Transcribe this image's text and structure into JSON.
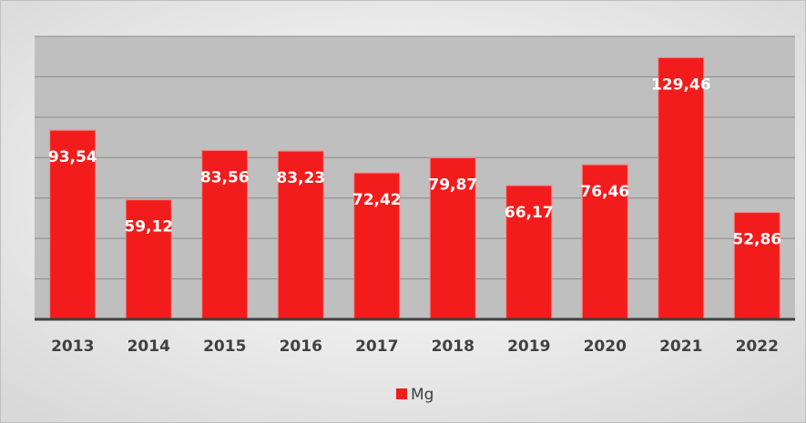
{
  "chart_data": {
    "type": "bar",
    "categories": [
      "2013",
      "2014",
      "2015",
      "2016",
      "2017",
      "2018",
      "2019",
      "2020",
      "2021",
      "2022"
    ],
    "series": [
      {
        "name": "Mg",
        "color": "#f21c1c",
        "values": [
          93.54,
          59.12,
          83.56,
          83.23,
          72.42,
          79.87,
          66.17,
          76.46,
          129.46,
          52.86
        ],
        "value_labels": [
          "93,54",
          "59,12",
          "83,56",
          "83,23",
          "72,42",
          "79,87",
          "66,17",
          "76,46",
          "129,46",
          "52,86"
        ]
      }
    ],
    "ylim": [
      0,
      140
    ],
    "yticks": [
      0,
      20,
      40,
      60,
      80,
      100,
      120,
      140
    ],
    "grid": true,
    "legend": "bottom"
  }
}
